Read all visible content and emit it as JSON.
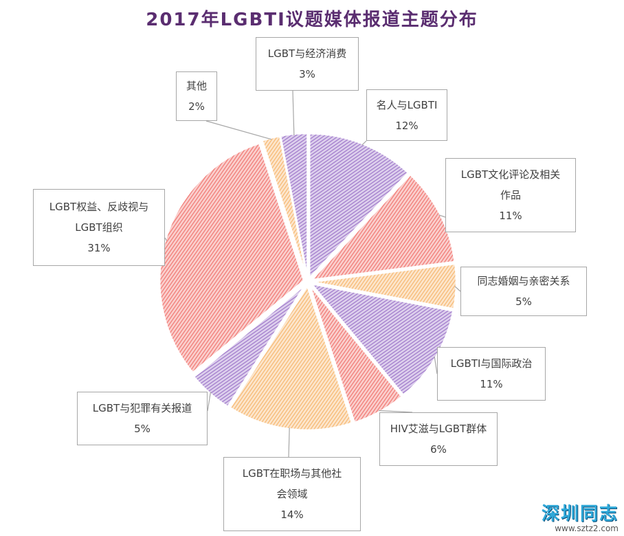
{
  "chart_data": {
    "type": "pie",
    "title": "2017年LGBTI议题媒体报道主题分布",
    "slices": [
      {
        "label": "名人与LGBTI",
        "value": 12,
        "color": "#9b72c8"
      },
      {
        "label": "LGBT文化评论及相关作品",
        "value": 11,
        "color": "#f0716c"
      },
      {
        "label": "同志婚姻与亲密关系",
        "value": 5,
        "color": "#f6b46a"
      },
      {
        "label": "LGBTI与国际政治",
        "value": 11,
        "color": "#9b72c8"
      },
      {
        "label": "HIV艾滋与LGBT群体",
        "value": 6,
        "color": "#f0716c"
      },
      {
        "label": "LGBT在职场与其他社会领域",
        "value": 14,
        "color": "#f6b46a"
      },
      {
        "label": "LGBT与犯罪有关报道",
        "value": 5,
        "color": "#9b72c8"
      },
      {
        "label": "LGBT权益、反歧视与LGBT组织",
        "value": 31,
        "color": "#f0716c"
      },
      {
        "label": "其他",
        "value": 2,
        "color": "#f6b46a"
      },
      {
        "label": "LGBT与经济消费",
        "value": 3,
        "color": "#9b72c8"
      }
    ]
  },
  "callouts": [
    {
      "lines": [
        "名人与LGBTI"
      ],
      "pct": "12%"
    },
    {
      "lines": [
        "LGBT文化评论及相关",
        "作品"
      ],
      "pct": "11%"
    },
    {
      "lines": [
        "同志婚姻与亲密关系"
      ],
      "pct": "5%"
    },
    {
      "lines": [
        "LGBTI与国际政治"
      ],
      "pct": "11%"
    },
    {
      "lines": [
        "HIV艾滋与LGBT群体"
      ],
      "pct": "6%"
    },
    {
      "lines": [
        "LGBT在职场与其他社",
        "会领域"
      ],
      "pct": "14%"
    },
    {
      "lines": [
        "LGBT与犯罪有关报道"
      ],
      "pct": "5%"
    },
    {
      "lines": [
        "LGBT权益、反歧视与",
        "LGBT组织"
      ],
      "pct": "31%"
    },
    {
      "lines": [
        "其他"
      ],
      "pct": "2%"
    },
    {
      "lines": [
        "LGBT与经济消费"
      ],
      "pct": "3%"
    }
  ],
  "watermark": {
    "main": "深圳同志",
    "url": "www.sztz2.com"
  }
}
